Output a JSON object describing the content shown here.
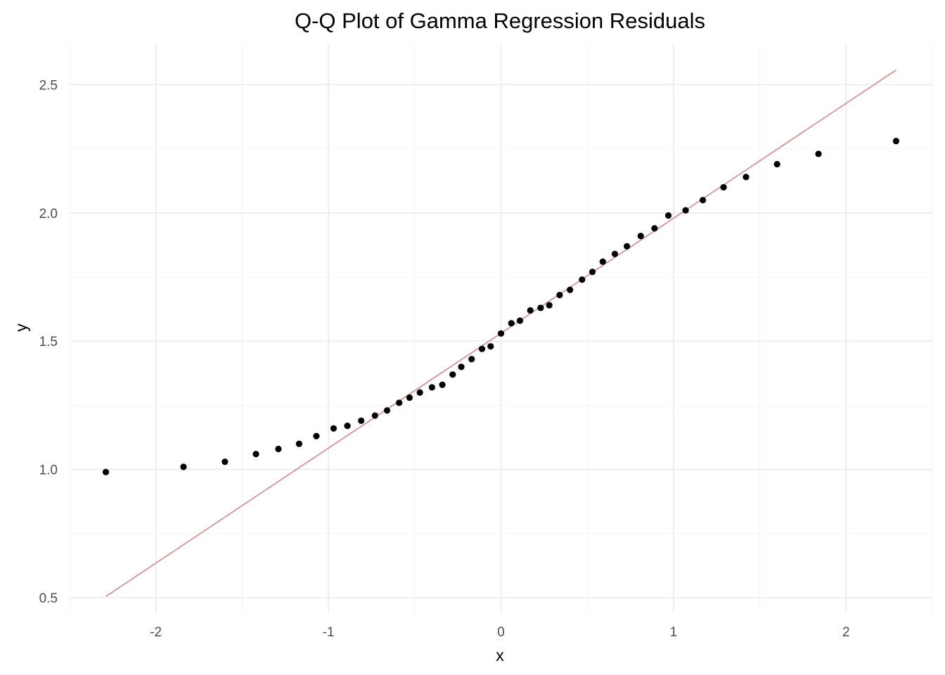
{
  "chart_data": {
    "type": "scatter",
    "title": "Q-Q Plot of Gamma Regression Residuals",
    "xlabel": "x",
    "ylabel": "y",
    "xlim": [
      -2.5,
      2.5
    ],
    "ylim": [
      0.44,
      2.66
    ],
    "x_ticks": [
      -2,
      -1,
      0,
      1,
      2
    ],
    "x_tick_labels": [
      "-2",
      "-1",
      "0",
      "1",
      "2"
    ],
    "y_ticks": [
      0.5,
      1.0,
      1.5,
      2.0,
      2.5
    ],
    "y_tick_labels": [
      "0.5",
      "1.0",
      "1.5",
      "2.0",
      "2.5"
    ],
    "grid": true,
    "point_color": "#000000",
    "line_color": "#d08a8a",
    "reference_line": {
      "x": [
        -2.29,
        2.29
      ],
      "y": [
        0.505,
        2.557
      ]
    },
    "points": {
      "x": [
        -2.29,
        -1.84,
        -1.6,
        -1.42,
        -1.29,
        -1.17,
        -1.07,
        -0.97,
        -0.89,
        -0.81,
        -0.73,
        -0.66,
        -0.59,
        -0.53,
        -0.47,
        -0.4,
        -0.34,
        -0.28,
        -0.23,
        -0.17,
        -0.11,
        -0.06,
        0.0,
        0.06,
        0.11,
        0.17,
        0.23,
        0.28,
        0.34,
        0.4,
        0.47,
        0.53,
        0.59,
        0.66,
        0.73,
        0.81,
        0.89,
        0.97,
        1.07,
        1.17,
        1.29,
        1.42,
        1.6,
        1.84,
        2.29
      ],
      "y": [
        0.99,
        1.01,
        1.03,
        1.06,
        1.08,
        1.1,
        1.13,
        1.16,
        1.17,
        1.19,
        1.21,
        1.23,
        1.26,
        1.28,
        1.3,
        1.32,
        1.33,
        1.37,
        1.4,
        1.43,
        1.47,
        1.48,
        1.53,
        1.57,
        1.58,
        1.62,
        1.63,
        1.64,
        1.68,
        1.7,
        1.74,
        1.77,
        1.81,
        1.84,
        1.87,
        1.91,
        1.94,
        1.99,
        2.01,
        2.05,
        2.1,
        2.14,
        2.19,
        2.23,
        2.28
      ]
    }
  }
}
